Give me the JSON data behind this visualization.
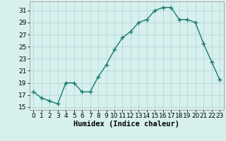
{
  "x": [
    0,
    1,
    2,
    3,
    4,
    5,
    6,
    7,
    8,
    9,
    10,
    11,
    12,
    13,
    14,
    15,
    16,
    17,
    18,
    19,
    20,
    21,
    22,
    23
  ],
  "y": [
    17.5,
    16.5,
    16.0,
    15.5,
    19.0,
    19.0,
    17.5,
    17.5,
    20.0,
    22.0,
    24.5,
    26.5,
    27.5,
    29.0,
    29.5,
    31.0,
    31.5,
    31.5,
    29.5,
    29.5,
    29.0,
    25.5,
    22.5,
    19.5
  ],
  "line_color": "#1a7a6e",
  "marker": "+",
  "marker_size": 4,
  "background_color": "#d6f0ee",
  "grid_color": "#b8d8d4",
  "xlabel": "Humidex (Indice chaleur)",
  "xlim": [
    -0.5,
    23.5
  ],
  "ylim": [
    14.5,
    32.5
  ],
  "yticks": [
    15,
    17,
    19,
    21,
    23,
    25,
    27,
    29,
    31
  ],
  "xticks": [
    0,
    1,
    2,
    3,
    4,
    5,
    6,
    7,
    8,
    9,
    10,
    11,
    12,
    13,
    14,
    15,
    16,
    17,
    18,
    19,
    20,
    21,
    22,
    23
  ],
  "tick_fontsize": 6.5,
  "xlabel_fontsize": 7.5,
  "line_width": 1.0
}
